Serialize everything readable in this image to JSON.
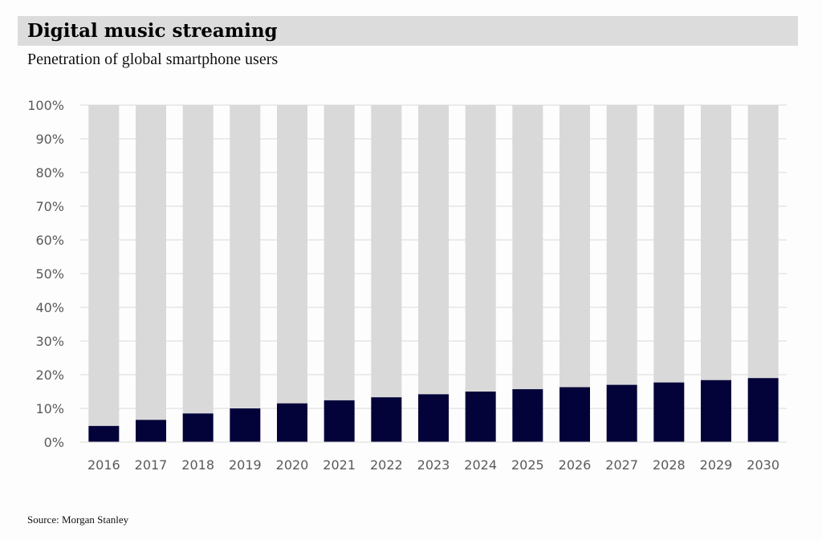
{
  "header": {
    "title": "Digital music streaming",
    "subtitle": "Penetration of global smartphone users"
  },
  "footer": {
    "source": "Source: Morgan Stanley"
  },
  "colors": {
    "value_bar": "#03033a",
    "remainder_bar": "#d9d9d9",
    "gridline": "#d9d9d9",
    "title_band": "#dcdcdc"
  },
  "chart_data": {
    "type": "bar",
    "stacked": true,
    "categories": [
      "2016",
      "2017",
      "2018",
      "2019",
      "2020",
      "2021",
      "2022",
      "2023",
      "2024",
      "2025",
      "2026",
      "2027",
      "2028",
      "2029",
      "2030"
    ],
    "series": [
      {
        "values": [
          4.8,
          6.6,
          8.5,
          10.0,
          11.5,
          12.4,
          13.3,
          14.2,
          15.0,
          15.7,
          16.3,
          17.0,
          17.7,
          18.4,
          19.0
        ]
      },
      {
        "values": [
          95.2,
          93.4,
          91.5,
          90.0,
          88.5,
          87.6,
          86.7,
          85.8,
          85.0,
          84.3,
          83.7,
          83.0,
          82.3,
          81.6,
          81.0
        ]
      }
    ],
    "ylim": [
      0,
      100
    ],
    "yticks": [
      "0%",
      "10%",
      "20%",
      "30%",
      "40%",
      "50%",
      "60%",
      "70%",
      "80%",
      "90%",
      "100%"
    ],
    "grid": true,
    "legend": "none"
  }
}
